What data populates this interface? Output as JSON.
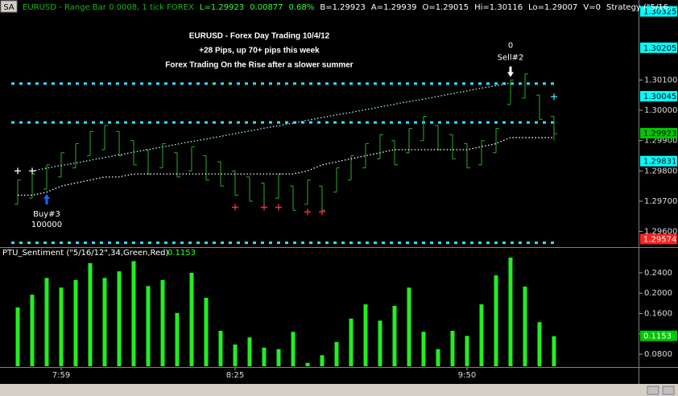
{
  "chart_data": [
    {
      "type": "ohlc",
      "symbol_label": "SA",
      "header": [
        {
          "text": "EURUSD - Range Bar 0.0008, 1 tick  FOREX",
          "color": "#19b419"
        },
        {
          "text": "L=1.29923",
          "color": "#33ff33"
        },
        {
          "text": "0.00877",
          "color": "#33ff33"
        },
        {
          "text": "0.68%",
          "color": "#33ff33"
        },
        {
          "text": "B=1.29923",
          "color": "#ffffff"
        },
        {
          "text": "A=1.29939",
          "color": "#ffffff"
        },
        {
          "text": "O=1.29015",
          "color": "#ffffff"
        },
        {
          "text": "Hi=1.30116",
          "color": "#ffffff"
        },
        {
          "text": "Lo=1.29007",
          "color": "#ffffff"
        },
        {
          "text": "V=0",
          "color": "#ffffff"
        },
        {
          "text": "Strategy (\"5/16..",
          "color": "#ffffff"
        }
      ],
      "annotations": [
        "EURUSD - Forex Day Trading 10/4/12",
        "+28 Pips, up 70+ pips this week",
        "Forex Trading On the Rise after a slower summer"
      ],
      "categories": [
        null,
        null,
        null,
        "7:59",
        null,
        null,
        null,
        null,
        null,
        null,
        null,
        null,
        null,
        null,
        null,
        "8:25",
        null,
        null,
        null,
        null,
        null,
        null,
        null,
        null,
        null,
        null,
        null,
        null,
        null,
        null,
        null,
        "9:50",
        null,
        null,
        null,
        null,
        null,
        null
      ],
      "open": [
        1.2969,
        1.2971,
        1.2974,
        1.2978,
        1.2981,
        1.2985,
        1.2987,
        1.2993,
        1.299,
        1.2987,
        1.2981,
        1.2986,
        1.298,
        1.2985,
        1.2983,
        1.298,
        1.2978,
        1.2976,
        1.2971,
        1.2975,
        1.2969,
        1.2975,
        1.2973,
        1.2977,
        1.2981,
        1.2984,
        1.299,
        1.2986,
        1.299,
        1.2995,
        1.2992,
        1.2989,
        1.2982,
        1.2986,
        1.3002,
        1.3004,
        1.3005,
        1.2998
      ],
      "high": [
        1.2977,
        1.2979,
        1.2982,
        1.2986,
        1.2989,
        1.2993,
        1.2995,
        1.2993,
        1.299,
        1.2987,
        1.2989,
        1.2986,
        1.2988,
        1.2985,
        1.2983,
        1.298,
        1.2978,
        1.2976,
        1.2979,
        1.2975,
        1.2977,
        1.2975,
        1.2981,
        1.2985,
        1.2989,
        1.2992,
        1.299,
        1.2994,
        1.2998,
        1.2995,
        1.2992,
        1.2989,
        1.299,
        1.2994,
        1.301,
        1.3012,
        1.3005,
        1.2998
      ],
      "low": [
        1.2969,
        1.2971,
        1.2974,
        1.2978,
        1.2981,
        1.2985,
        1.2987,
        1.2985,
        1.2982,
        1.2979,
        1.2981,
        1.2978,
        1.298,
        1.2977,
        1.2975,
        1.2972,
        1.297,
        1.2968,
        1.2971,
        1.2967,
        1.2969,
        1.2967,
        1.2973,
        1.2977,
        1.2981,
        1.2984,
        1.2982,
        1.2986,
        1.299,
        1.2987,
        1.2984,
        1.2981,
        1.2982,
        1.2986,
        1.3002,
        1.3004,
        1.2997,
        1.299
      ],
      "close": [
        1.2977,
        1.2979,
        1.2982,
        1.2986,
        1.2989,
        1.2993,
        1.2995,
        1.2985,
        1.2982,
        1.2979,
        1.2989,
        1.2978,
        1.2988,
        1.2977,
        1.2975,
        1.2972,
        1.297,
        1.2968,
        1.2979,
        1.2967,
        1.2977,
        1.2967,
        1.2981,
        1.2985,
        1.2989,
        1.2992,
        1.2982,
        1.2994,
        1.2998,
        1.2987,
        1.2984,
        1.2981,
        1.299,
        1.2994,
        1.301,
        1.3012,
        1.2997,
        1.29923
      ],
      "color": "#2fa82f",
      "series": [
        {
          "style": "dotted-line",
          "color": "#a8f4ff",
          "values": [
            null,
            1.298,
            1.29809,
            1.29818,
            1.29826,
            1.29835,
            1.29844,
            1.29853,
            1.29862,
            1.2987,
            1.29879,
            1.29888,
            1.29897,
            1.29905,
            1.29914,
            1.29923,
            1.29932,
            1.29941,
            1.29949,
            1.29958,
            1.29967,
            1.29976,
            1.29985,
            1.29993,
            1.30002,
            1.30011,
            1.3002,
            1.30029,
            1.30037,
            1.30046,
            1.30055,
            1.30064,
            1.30073,
            1.30081,
            1.3009,
            null,
            null,
            null
          ]
        },
        {
          "style": "dotted-line",
          "color": "#ffffff",
          "values": [
            1.2972,
            1.2972,
            1.2973,
            1.2975,
            1.2976,
            1.2977,
            1.2978,
            1.2978,
            1.2979,
            1.2979,
            1.2979,
            1.2979,
            1.2979,
            1.2979,
            1.2979,
            1.2979,
            1.2979,
            1.2979,
            1.2979,
            1.2979,
            1.298,
            1.2982,
            1.2983,
            1.2984,
            1.2985,
            1.2986,
            1.2987,
            1.2987,
            1.2987,
            1.2987,
            1.2987,
            1.2987,
            1.2988,
            1.2989,
            1.2991,
            1.2991,
            1.2991,
            1.2991
          ]
        },
        {
          "style": "cross",
          "color": "#ff3333",
          "values": [
            null,
            null,
            null,
            null,
            null,
            null,
            null,
            null,
            null,
            null,
            null,
            null,
            null,
            null,
            null,
            1.2968,
            null,
            1.2968,
            1.2968,
            null,
            1.29665,
            1.29665,
            null,
            null,
            null,
            null,
            null,
            null,
            null,
            null,
            null,
            null,
            null,
            null,
            null,
            null,
            null,
            null
          ]
        },
        {
          "style": "cross",
          "color": "#ffffff",
          "values": [
            1.298,
            1.298,
            null,
            null,
            null,
            null,
            null,
            null,
            null,
            null,
            null,
            null,
            null,
            null,
            null,
            null,
            null,
            null,
            null,
            null,
            null,
            null,
            null,
            null,
            null,
            null,
            null,
            null,
            null,
            null,
            null,
            null,
            null,
            null,
            null,
            null,
            null,
            null
          ]
        },
        {
          "style": "cross",
          "color": "#33e0ff",
          "values": [
            null,
            null,
            null,
            null,
            null,
            null,
            null,
            null,
            null,
            null,
            null,
            null,
            null,
            null,
            null,
            null,
            null,
            null,
            null,
            null,
            null,
            null,
            null,
            null,
            null,
            null,
            null,
            null,
            null,
            null,
            null,
            null,
            null,
            null,
            null,
            null,
            null,
            1.30045
          ]
        }
      ],
      "levels": [
        {
          "value": 1.30088,
          "color": "#33e0ff"
        },
        {
          "value": 1.2996,
          "color": "#33e0ff"
        },
        {
          "value": 1.29563,
          "color": "#33e0ff"
        }
      ],
      "signals": [
        {
          "name": "Buy#3",
          "size": 100000,
          "price": 1.297,
          "color": "#1e64ff"
        },
        {
          "name": "Sell#2",
          "size": 0,
          "price": 1.3011,
          "color": "#ffffff"
        }
      ],
      "flags": [
        {
          "value": 1.30325,
          "color": "#00ffff"
        },
        {
          "value": 1.30205,
          "color": "#00ffff"
        },
        {
          "value": 1.30045,
          "color": "#00ffff"
        },
        {
          "value": 1.29923,
          "color": "#00c800"
        },
        {
          "value": 1.29831,
          "color": "#00ffff"
        },
        {
          "value": 1.29574,
          "color": "#ff2020"
        }
      ],
      "ylim": [
        1.29554,
        1.30316
      ],
      "yticks": [
        {
          "value": 1.301,
          "label": "1.30100"
        },
        {
          "value": 1.3,
          "label": "1.30000"
        },
        {
          "value": 1.299,
          "label": "1.29900"
        },
        {
          "value": 1.298,
          "label": "1.29800"
        },
        {
          "value": 1.297,
          "label": "1.29700"
        },
        {
          "value": 1.296,
          "label": "1.29600"
        }
      ]
    },
    {
      "type": "bar",
      "title": "PTU_Sentiment (\"5/16/12\",34,Green,Red)",
      "values": [
        0.172,
        0.197,
        0.23,
        0.211,
        0.226,
        0.259,
        0.23,
        0.243,
        0.263,
        0.214,
        0.226,
        0.161,
        0.24,
        0.191,
        0.126,
        0.099,
        0.113,
        0.093,
        0.09,
        0.124,
        0.063,
        0.078,
        0.104,
        0.15,
        0.178,
        0.146,
        0.175,
        0.211,
        0.124,
        0.09,
        0.126,
        0.116,
        0.178,
        0.235,
        0.27,
        0.213,
        0.143,
        0.1153
      ],
      "color": "#22ee22",
      "flag_color": "#00c800",
      "ylim": [
        0.0563,
        0.2827
      ],
      "yticks": [
        {
          "value": 0.24,
          "label": "0.2400"
        },
        {
          "value": 0.2,
          "label": "0.2000"
        },
        {
          "value": 0.16,
          "label": "0.1600"
        },
        {
          "value": 0.12,
          "label": "0.1200"
        },
        {
          "value": 0.08,
          "label": "0.0800"
        }
      ]
    }
  ]
}
